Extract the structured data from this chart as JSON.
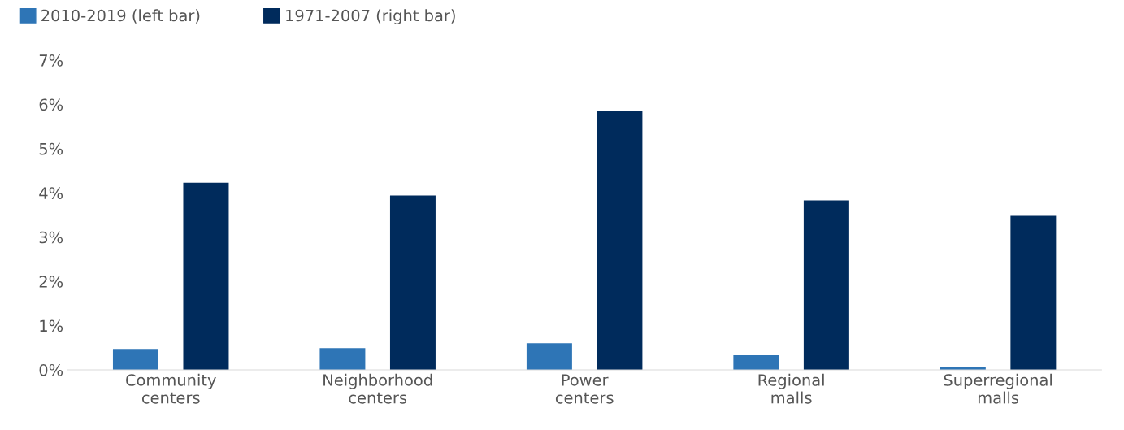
{
  "chart_data": {
    "type": "bar",
    "categories": [
      "Community\ncenters",
      "Neighborhood\ncenters",
      "Power\ncenters",
      "Regional\nmalls",
      "Superregional\nmalls"
    ],
    "series": [
      {
        "name": "2010-2019 (left bar)",
        "color": "#2e75b6",
        "values": [
          0.47,
          0.49,
          0.6,
          0.33,
          0.07
        ]
      },
      {
        "name": "1971-2007 (right bar)",
        "color": "#002b5c",
        "values": [
          4.23,
          3.94,
          5.86,
          3.83,
          3.48
        ]
      }
    ],
    "ylim": [
      0,
      7
    ],
    "yticks": [
      {
        "value": 0,
        "label": "0%"
      },
      {
        "value": 1,
        "label": "1%"
      },
      {
        "value": 2,
        "label": "2%"
      },
      {
        "value": 3,
        "label": "3%"
      },
      {
        "value": 4,
        "label": "4%"
      },
      {
        "value": 5,
        "label": "5%"
      },
      {
        "value": 6,
        "label": "6%"
      },
      {
        "value": 7,
        "label": "7%"
      }
    ],
    "grid": false,
    "legend": "top left"
  }
}
